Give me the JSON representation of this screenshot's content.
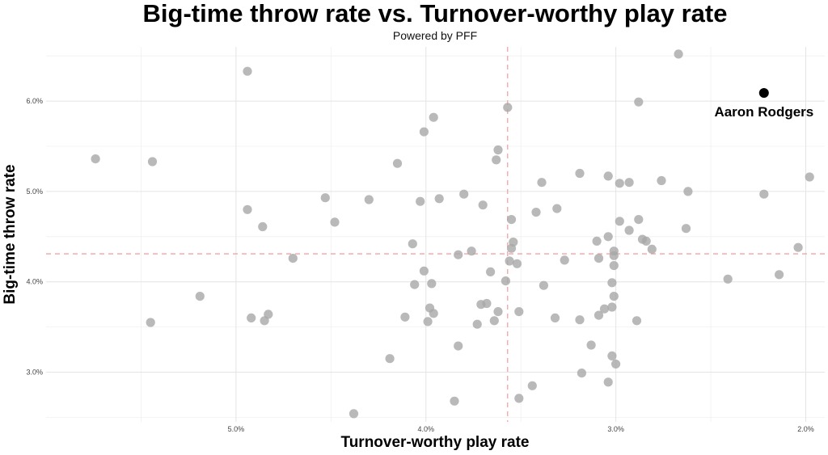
{
  "chart_data": {
    "type": "scatter",
    "title": "Big-time throw rate vs. Turnover-worthy play rate",
    "subtitle": "Powered by PFF",
    "xlabel": "Turnover-worthy play rate",
    "ylabel": "Big-time throw rate",
    "x_reversed": true,
    "xlim": [
      6.0,
      1.9
    ],
    "ylim": [
      2.45,
      6.6
    ],
    "x_ticks": [
      5.0,
      4.0,
      3.0,
      2.0
    ],
    "x_tick_labels": [
      "5.0%",
      "4.0%",
      "3.0%",
      "2.0%"
    ],
    "y_ticks": [
      3.0,
      4.0,
      5.0,
      6.0
    ],
    "y_tick_labels": [
      "3.0%",
      "4.0%",
      "5.0%",
      "6.0%"
    ],
    "grid": true,
    "ref_lines": {
      "x": 3.57,
      "y": 4.31
    },
    "point_color": "#a8a8a8",
    "highlight_color": "#000000",
    "ref_line_color": "#f3a3a3",
    "highlight": {
      "label": "Aaron Rodgers",
      "x": 2.22,
      "y": 6.09
    },
    "points": [
      [
        5.74,
        5.36
      ],
      [
        5.44,
        5.33
      ],
      [
        5.45,
        3.55
      ],
      [
        5.19,
        3.84
      ],
      [
        4.94,
        6.33
      ],
      [
        4.94,
        4.8
      ],
      [
        4.92,
        3.6
      ],
      [
        4.86,
        4.61
      ],
      [
        4.85,
        3.57
      ],
      [
        4.83,
        3.64
      ],
      [
        4.7,
        4.26
      ],
      [
        4.53,
        4.93
      ],
      [
        4.48,
        4.66
      ],
      [
        4.38,
        2.54
      ],
      [
        4.3,
        4.91
      ],
      [
        4.19,
        3.15
      ],
      [
        4.15,
        5.31
      ],
      [
        4.11,
        3.61
      ],
      [
        4.07,
        4.42
      ],
      [
        4.06,
        3.97
      ],
      [
        4.03,
        4.89
      ],
      [
        4.01,
        5.66
      ],
      [
        4.01,
        4.12
      ],
      [
        3.99,
        3.56
      ],
      [
        3.98,
        3.71
      ],
      [
        3.97,
        3.98
      ],
      [
        3.96,
        5.82
      ],
      [
        3.96,
        3.65
      ],
      [
        3.93,
        4.92
      ],
      [
        3.85,
        2.68
      ],
      [
        3.83,
        4.3
      ],
      [
        3.83,
        3.29
      ],
      [
        3.8,
        4.97
      ],
      [
        3.76,
        4.34
      ],
      [
        3.73,
        3.53
      ],
      [
        3.71,
        3.75
      ],
      [
        3.7,
        4.85
      ],
      [
        3.68,
        3.76
      ],
      [
        3.66,
        4.11
      ],
      [
        3.64,
        3.57
      ],
      [
        3.63,
        5.35
      ],
      [
        3.62,
        5.46
      ],
      [
        3.62,
        3.67
      ],
      [
        3.58,
        4.01
      ],
      [
        3.57,
        5.93
      ],
      [
        3.56,
        4.23
      ],
      [
        3.55,
        4.37
      ],
      [
        3.55,
        4.69
      ],
      [
        3.54,
        4.44
      ],
      [
        3.52,
        4.2
      ],
      [
        3.51,
        3.67
      ],
      [
        3.51,
        2.71
      ],
      [
        3.44,
        2.85
      ],
      [
        3.42,
        4.77
      ],
      [
        3.39,
        5.1
      ],
      [
        3.38,
        3.96
      ],
      [
        3.32,
        3.6
      ],
      [
        3.31,
        4.81
      ],
      [
        3.27,
        4.24
      ],
      [
        3.19,
        5.2
      ],
      [
        3.19,
        3.58
      ],
      [
        3.18,
        2.99
      ],
      [
        3.13,
        3.3
      ],
      [
        3.1,
        4.45
      ],
      [
        3.09,
        3.63
      ],
      [
        3.09,
        4.26
      ],
      [
        3.06,
        3.7
      ],
      [
        3.04,
        2.89
      ],
      [
        3.04,
        4.5
      ],
      [
        3.04,
        5.17
      ],
      [
        3.02,
        3.72
      ],
      [
        3.02,
        3.18
      ],
      [
        3.02,
        3.99
      ],
      [
        3.01,
        4.34
      ],
      [
        3.01,
        4.29
      ],
      [
        3.01,
        4.18
      ],
      [
        3.01,
        3.84
      ],
      [
        3.0,
        3.09
      ],
      [
        2.98,
        5.09
      ],
      [
        2.98,
        4.67
      ],
      [
        2.93,
        5.1
      ],
      [
        2.93,
        4.57
      ],
      [
        2.89,
        3.57
      ],
      [
        2.88,
        5.99
      ],
      [
        2.88,
        4.69
      ],
      [
        2.86,
        4.47
      ],
      [
        2.84,
        4.45
      ],
      [
        2.81,
        4.36
      ],
      [
        2.76,
        5.12
      ],
      [
        2.67,
        6.52
      ],
      [
        2.63,
        4.59
      ],
      [
        2.62,
        5.0
      ],
      [
        2.41,
        4.03
      ],
      [
        2.22,
        4.97
      ],
      [
        2.14,
        4.08
      ],
      [
        2.04,
        4.38
      ],
      [
        1.98,
        5.16
      ]
    ]
  }
}
